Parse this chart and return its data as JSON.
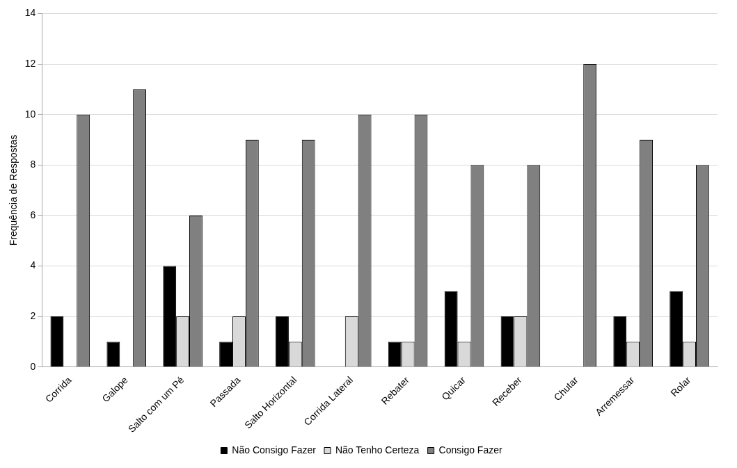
{
  "chart_data": {
    "type": "bar",
    "ylabel": "Frequência de Respostas",
    "categories": [
      "Corrida",
      "Galope",
      "Salto com um Pé",
      "Passada",
      "Salto Horizontal",
      "Corrida Lateral",
      "Rebater",
      "Quicar",
      "Receber",
      "Chutar",
      "Arremessar",
      "Rolar"
    ],
    "series": [
      {
        "name": "Não Consigo Fazer",
        "color": "#000000",
        "values": [
          2,
          1,
          4,
          1,
          2,
          0,
          1,
          3,
          2,
          0,
          2,
          3
        ]
      },
      {
        "name": "Não Tenho Certeza",
        "color": "#d9d9d9",
        "values": [
          0,
          0,
          2,
          2,
          1,
          2,
          1,
          1,
          2,
          0,
          1,
          1
        ]
      },
      {
        "name": "Consigo Fazer",
        "color": "#808080",
        "values": [
          10,
          11,
          6,
          9,
          9,
          10,
          10,
          8,
          8,
          12,
          9,
          8
        ]
      }
    ],
    "ylim": [
      0,
      14
    ],
    "yticks": [
      0,
      2,
      4,
      6,
      8,
      10,
      12,
      14
    ],
    "grid": "y",
    "legend": "bottom"
  }
}
